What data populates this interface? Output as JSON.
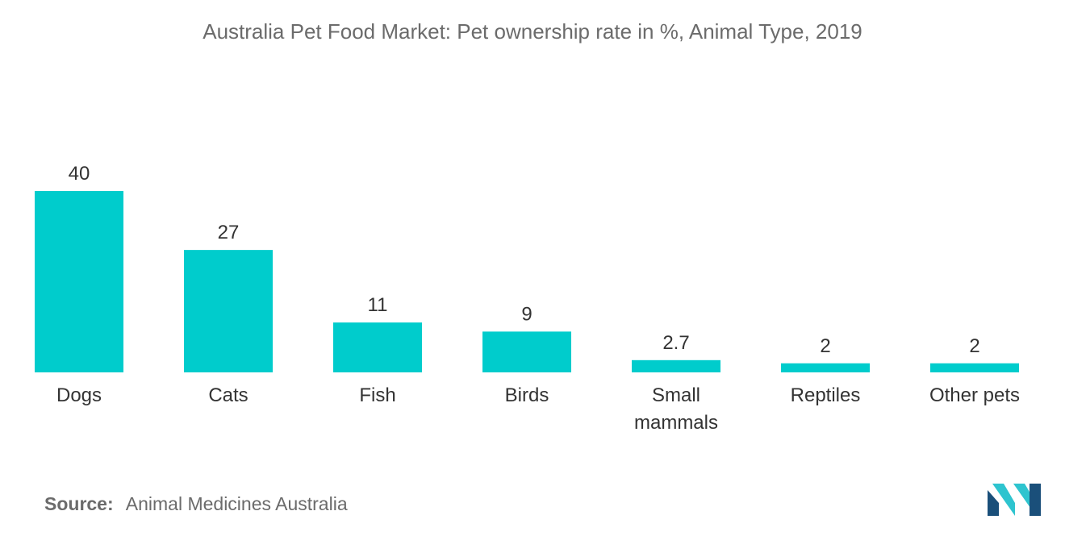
{
  "title": "Australia Pet Food Market: Pet ownership rate in %, Animal Type, 2019",
  "source": {
    "label": "Source:",
    "text": "Animal Medicines Australia"
  },
  "logo": {
    "icon": "mordor-intelligence-logo-icon",
    "colors": [
      "#1a4f7a",
      "#2ec4cf"
    ]
  },
  "colors": {
    "bar": "#00cccc",
    "text": "#333333",
    "title": "#6b6b6b"
  },
  "chart_data": {
    "type": "bar",
    "title": "Australia Pet Food Market: Pet ownership rate in %, Animal Type, 2019",
    "xlabel": "",
    "ylabel": "",
    "categories": [
      "Dogs",
      "Cats",
      "Fish",
      "Birds",
      "Small mammals",
      "Reptiles",
      "Other pets"
    ],
    "category_lines": [
      [
        "Dogs"
      ],
      [
        "Cats"
      ],
      [
        "Fish"
      ],
      [
        "Birds"
      ],
      [
        "Small",
        "mammals"
      ],
      [
        "Reptiles"
      ],
      [
        "Other pets"
      ]
    ],
    "values": [
      40,
      27,
      11,
      9,
      2.7,
      2,
      2
    ],
    "value_labels": [
      "40",
      "27",
      "11",
      "9",
      "2.7",
      "2",
      "2"
    ],
    "ylim": [
      0,
      40
    ],
    "grid": false,
    "legend": "none",
    "data_labels": true
  }
}
